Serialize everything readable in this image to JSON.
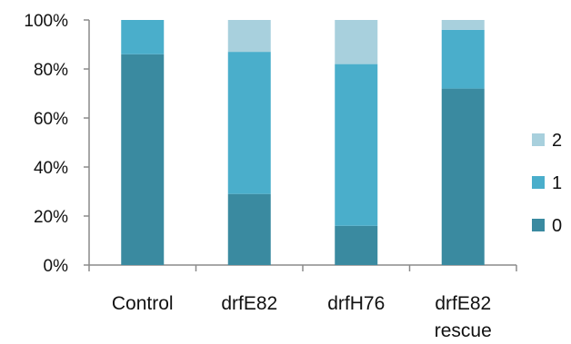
{
  "chart_data": {
    "type": "bar",
    "stacked": true,
    "percent": true,
    "categories": [
      [
        "Control"
      ],
      [
        "drfE82"
      ],
      [
        "drfH76"
      ],
      [
        "drfE82",
        "rescue"
      ]
    ],
    "series": [
      {
        "name": "0",
        "color": "#3a8aa0",
        "values": [
          86,
          29,
          16,
          72
        ]
      },
      {
        "name": "1",
        "color": "#4aaecb",
        "values": [
          14,
          58,
          66,
          24
        ]
      },
      {
        "name": "2",
        "color": "#a8d0dd",
        "values": [
          0,
          13,
          18,
          4
        ]
      }
    ],
    "yticks": [
      "0%",
      "20%",
      "40%",
      "60%",
      "80%",
      "100%"
    ],
    "ylim": [
      0,
      100
    ],
    "legend": {
      "position": "right",
      "order": [
        "2",
        "1",
        "0"
      ]
    },
    "grid": false
  }
}
